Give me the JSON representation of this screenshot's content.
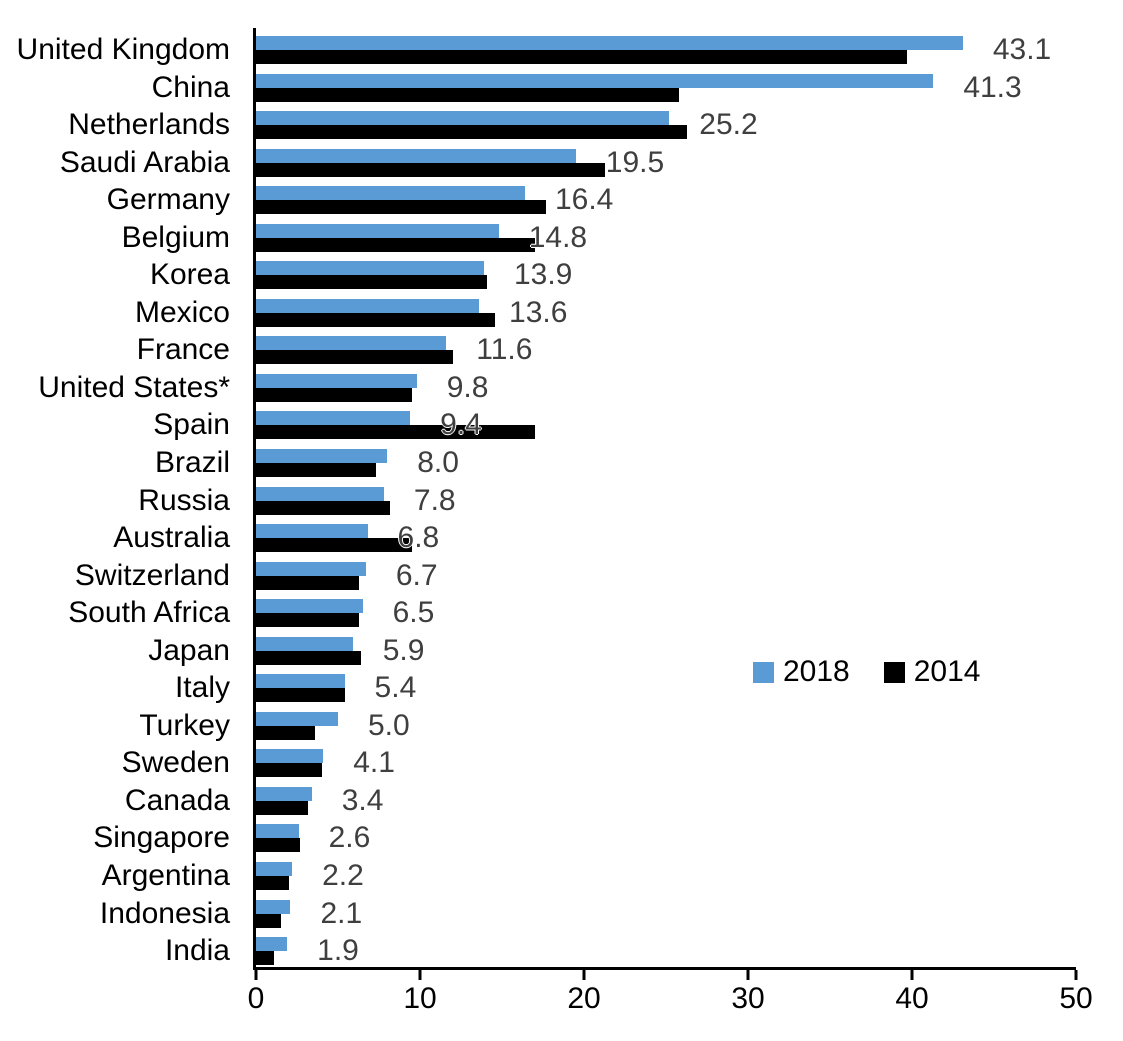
{
  "chart_data": {
    "type": "bar",
    "orientation": "horizontal",
    "title": "",
    "xlabel": "",
    "ylabel": "",
    "xlim": [
      0,
      50
    ],
    "x_ticks": [
      0,
      10,
      20,
      30,
      40,
      50
    ],
    "grid": false,
    "categories": [
      "United Kingdom",
      "China",
      "Netherlands",
      "Saudi Arabia",
      "Germany",
      "Belgium",
      "Korea",
      "Mexico",
      "France",
      "United States*",
      "Spain",
      "Brazil",
      "Russia",
      "Australia",
      "Switzerland",
      "South Africa",
      "Japan",
      "Italy",
      "Turkey",
      "Sweden",
      "Canada",
      "Singapore",
      "Argentina",
      "Indonesia",
      "India"
    ],
    "series": [
      {
        "name": "2018",
        "color": "#5b9bd5",
        "values": [
          43.1,
          41.3,
          25.2,
          19.5,
          16.4,
          14.8,
          13.9,
          13.6,
          11.6,
          9.8,
          9.4,
          8.0,
          7.8,
          6.8,
          6.7,
          6.5,
          5.9,
          5.4,
          5.0,
          4.1,
          3.4,
          2.6,
          2.2,
          2.1,
          1.9
        ],
        "data_labels": [
          "43.1",
          "41.3",
          "25.2",
          "19.5",
          "16.4",
          "14.8",
          "13.9",
          "13.6",
          "11.6",
          "9.8",
          "9.4",
          "8.0",
          "7.8",
          "6.8",
          "6.7",
          "6.5",
          "5.9",
          "5.4",
          "5.0",
          "4.1",
          "3.4",
          "2.6",
          "2.2",
          "2.1",
          "1.9"
        ]
      },
      {
        "name": "2014",
        "color": "#000000",
        "values": [
          39.7,
          25.8,
          26.3,
          21.3,
          17.7,
          17.0,
          14.1,
          14.6,
          12.0,
          9.5,
          17.0,
          7.3,
          8.2,
          9.5,
          6.3,
          6.3,
          6.4,
          5.4,
          3.6,
          4.0,
          3.2,
          2.7,
          2.0,
          1.5,
          1.1
        ]
      }
    ],
    "legend": {
      "position": "middle-right",
      "entries": [
        {
          "label": "2018",
          "color": "#5b9bd5"
        },
        {
          "label": "2014",
          "color": "#000000"
        }
      ]
    },
    "value_label_color": "#3f3f3f"
  }
}
